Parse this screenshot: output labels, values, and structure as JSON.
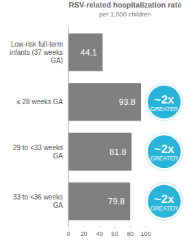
{
  "chart_data": {
    "type": "bar",
    "orientation": "horizontal",
    "title": "RSV-related hospitalization rate",
    "subtitle": "per 1,000 children",
    "categories": [
      "Low-risk full-term infants (37 weeks GA)",
      "≤ 28 weeks GA",
      "29 to <33 weeks GA",
      "33 to <36 weeks GA"
    ],
    "values": [
      44.1,
      93.8,
      81.8,
      79.8
    ],
    "color": "#808080",
    "data_labels": true,
    "badges": [
      null,
      {
        "big": "~2x",
        "small": "GREATER"
      },
      {
        "big": "~2x",
        "small": "GREATER"
      },
      {
        "big": "~2x",
        "small": "GREATER"
      }
    ],
    "xlim": [
      0,
      100
    ],
    "xticks": [
      0,
      20,
      40,
      60,
      80,
      100
    ],
    "grid": false
  }
}
